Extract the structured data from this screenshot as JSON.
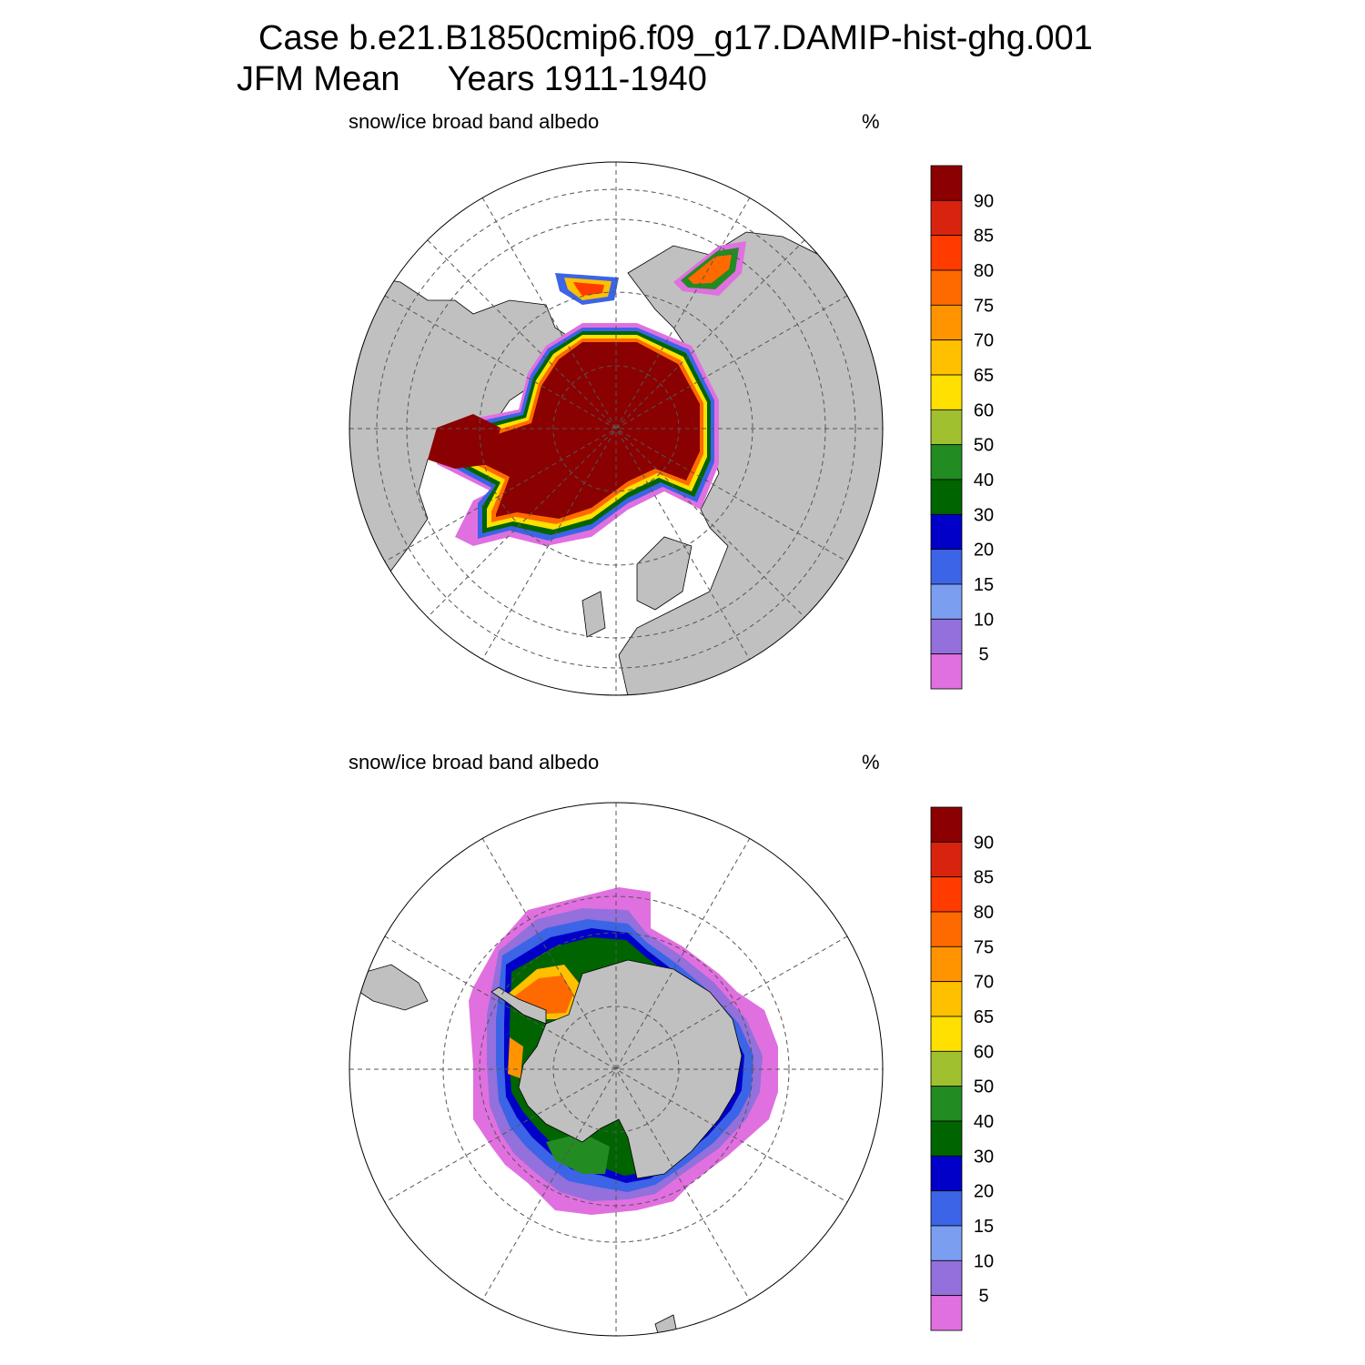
{
  "title": {
    "line1": "Case b.e21.B1850cmip6.f09_g17.DAMIP-hist-ghg.001",
    "line2": "JFM Mean     Years 1911-1940"
  },
  "colorbar": {
    "levels": [
      "90",
      "85",
      "80",
      "75",
      "70",
      "65",
      "60",
      "50",
      "40",
      "30",
      "20",
      "15",
      "10",
      "5"
    ],
    "colors": [
      "#8b0000",
      "#d8230f",
      "#ff3b00",
      "#ff6a00",
      "#ff9400",
      "#ffc000",
      "#ffe000",
      "#a0c030",
      "#228b22",
      "#006400",
      "#0000c8",
      "#3c64e6",
      "#7b9ef0",
      "#9370db",
      "#e070e0"
    ]
  },
  "colors": {
    "land": "#c0c0c0",
    "ocean": "#ffffff",
    "grid": "#666666"
  },
  "panels": [
    {
      "id": "north",
      "hemisphere": "Arctic",
      "field": "snow/ice broad band albedo",
      "units": "%"
    },
    {
      "id": "south",
      "hemisphere": "Antarctic",
      "field": "snow/ice broad band albedo",
      "units": "%"
    }
  ]
}
